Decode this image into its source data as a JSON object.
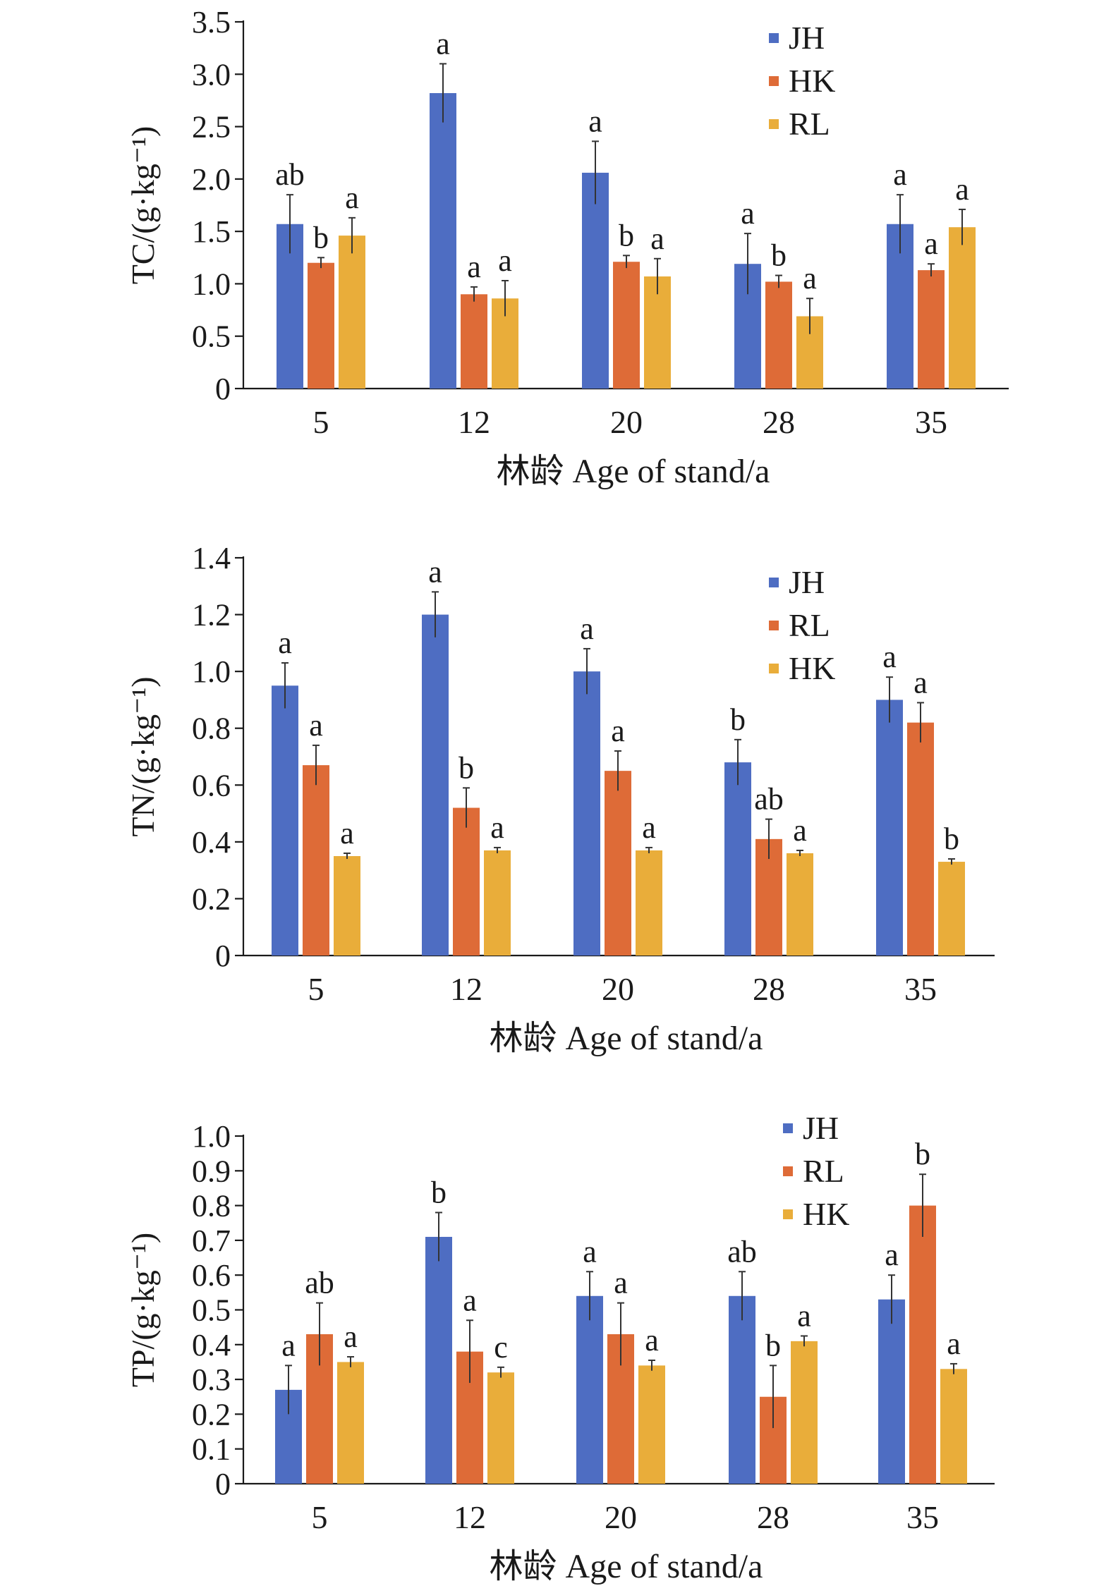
{
  "chart_data": [
    {
      "type": "bar",
      "ylabel": "TC/(g·kg⁻¹)",
      "xlabel": "林龄 Age of stand/a",
      "categories": [
        "5",
        "12",
        "20",
        "28",
        "35"
      ],
      "ylim": [
        0,
        3.5
      ],
      "yticks": [
        "0",
        "0.5",
        "1.0",
        "1.5",
        "2.0",
        "2.5",
        "3.0",
        "3.5"
      ],
      "legend_position": "top-right",
      "series": [
        {
          "name": "JH",
          "color": "#4e6dc2",
          "values": [
            1.57,
            2.82,
            2.06,
            1.19,
            1.57
          ],
          "errors": [
            0.28,
            0.28,
            0.3,
            0.29,
            0.28
          ],
          "letters": [
            "ab",
            "a",
            "a",
            "a",
            "a"
          ]
        },
        {
          "name": "HK",
          "color": "#de6b37",
          "values": [
            1.2,
            0.9,
            1.21,
            1.02,
            1.13
          ],
          "errors": [
            0.05,
            0.07,
            0.06,
            0.06,
            0.06
          ],
          "letters": [
            "b",
            "a",
            "b",
            "b",
            "a"
          ]
        },
        {
          "name": "RL",
          "color": "#e9ad3a",
          "values": [
            1.46,
            0.86,
            1.07,
            0.69,
            1.54
          ],
          "errors": [
            0.17,
            0.17,
            0.17,
            0.17,
            0.17
          ],
          "letters": [
            "a",
            "a",
            "a",
            "a",
            "a"
          ]
        }
      ]
    },
    {
      "type": "bar",
      "ylabel": "TN/(g·kg⁻¹)",
      "xlabel": "林龄 Age of stand/a",
      "categories": [
        "5",
        "12",
        "20",
        "28",
        "35"
      ],
      "ylim": [
        0,
        1.4
      ],
      "yticks": [
        "0",
        "0.2",
        "0.4",
        "0.6",
        "0.8",
        "1.0",
        "1.2",
        "1.4"
      ],
      "legend_position": "top-right",
      "series": [
        {
          "name": "JH",
          "color": "#4e6dc2",
          "values": [
            0.95,
            1.2,
            1.0,
            0.68,
            0.9
          ],
          "errors": [
            0.08,
            0.08,
            0.08,
            0.08,
            0.08
          ],
          "letters": [
            "a",
            "a",
            "a",
            "b",
            "a"
          ]
        },
        {
          "name": "RL",
          "color": "#de6b37",
          "values": [
            0.67,
            0.52,
            0.65,
            0.41,
            0.82
          ],
          "errors": [
            0.07,
            0.07,
            0.07,
            0.07,
            0.07
          ],
          "letters": [
            "a",
            "b",
            "a",
            "ab",
            "a"
          ]
        },
        {
          "name": "HK",
          "color": "#e9ad3a",
          "values": [
            0.35,
            0.37,
            0.37,
            0.36,
            0.33
          ],
          "errors": [
            0.01,
            0.01,
            0.01,
            0.01,
            0.01
          ],
          "letters": [
            "a",
            "a",
            "a",
            "a",
            "b"
          ]
        }
      ]
    },
    {
      "type": "bar",
      "ylabel": "TP/(g·kg⁻¹)",
      "xlabel": "林龄 Age of stand/a",
      "categories": [
        "5",
        "12",
        "20",
        "28",
        "35"
      ],
      "ylim": [
        0,
        1.0
      ],
      "yticks": [
        "0",
        "0.1",
        "0.2",
        "0.3",
        "0.4",
        "0.5",
        "0.6",
        "0.7",
        "0.8",
        "0.9",
        "1.0"
      ],
      "legend_position": "top-right",
      "series": [
        {
          "name": "JH",
          "color": "#4e6dc2",
          "values": [
            0.27,
            0.71,
            0.54,
            0.54,
            0.53
          ],
          "errors": [
            0.07,
            0.07,
            0.07,
            0.07,
            0.07
          ],
          "letters": [
            "a",
            "b",
            "a",
            "ab",
            "a"
          ]
        },
        {
          "name": "RL",
          "color": "#de6b37",
          "values": [
            0.43,
            0.38,
            0.43,
            0.25,
            0.8
          ],
          "errors": [
            0.09,
            0.09,
            0.09,
            0.09,
            0.09
          ],
          "letters": [
            "ab",
            "a",
            "a",
            "b",
            "b"
          ]
        },
        {
          "name": "HK",
          "color": "#e9ad3a",
          "values": [
            0.35,
            0.32,
            0.34,
            0.41,
            0.33
          ],
          "errors": [
            0.015,
            0.015,
            0.015,
            0.015,
            0.015
          ],
          "letters": [
            "a",
            "c",
            "a",
            "a",
            "a"
          ]
        }
      ]
    }
  ]
}
